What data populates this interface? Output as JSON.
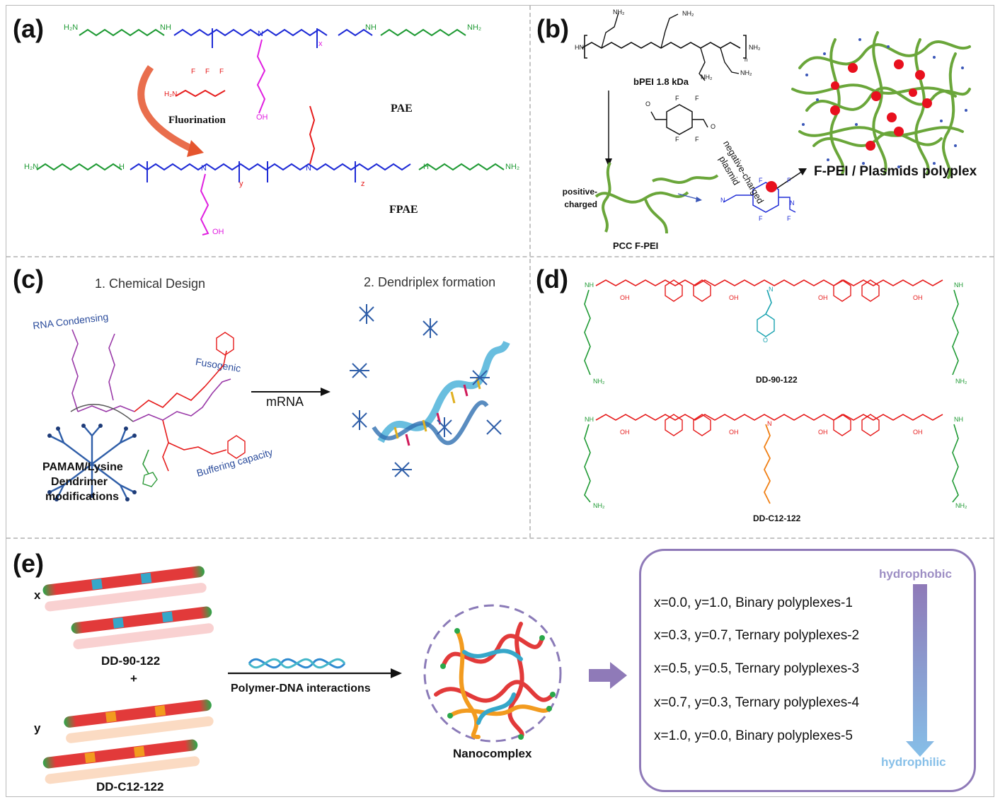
{
  "panels": {
    "a": {
      "label": "(a)",
      "reagent_label": "Fluorination",
      "pae_label": "PAE",
      "fpae_label": "FPAE",
      "atoms": {
        "h2n": "H₂N",
        "nh": "NH",
        "nh2": "NH₂",
        "n": "N",
        "oh": "OH",
        "o": "O",
        "f": "F",
        "x": "x",
        "y": "y",
        "z": "z",
        "h": "H"
      }
    },
    "b": {
      "label": "(b)",
      "bpei_label": "bPEI 1.8 kDa",
      "positive_label_1": "positive-",
      "positive_label_2": "charged",
      "pcc_label": "PCC F-PEI",
      "arrow_label_1": "negative-charged",
      "arrow_label_2": "plasmid",
      "polyplex_label": "F-PEI / Plasmids polyplex",
      "atoms": {
        "hn": "HN",
        "nh2": "NH₂",
        "n": "N",
        "h": "H",
        "n_sub": "n",
        "f": "F",
        "o": "O"
      }
    },
    "c": {
      "label": "(c)",
      "step1": "1. Chemical Design",
      "step2": "2. Dendriplex formation",
      "rna_condensing": "RNA Condensing",
      "fusogenic": "Fusogenic",
      "buffering": "Buffering capacity",
      "dendrimer_1": "PAMAM/Lysine",
      "dendrimer_2": "Dendrimer",
      "dendrimer_3": "modifications",
      "arrow_label": "mRNA"
    },
    "d": {
      "label": "(d)",
      "compound_1": "DD-90-122",
      "compound_2": "DD-C12-122",
      "atoms": {
        "nh": "NH",
        "nh2": "NH₂",
        "n": "N",
        "o": "O",
        "oh": "OH"
      }
    },
    "e": {
      "label": "(e)",
      "x": "x",
      "y": "y",
      "plus": "+",
      "polymer_1": "DD-90-122",
      "polymer_2": "DD-C12-122",
      "interaction_label": "Polymer-DNA interactions",
      "nanocomplex_label": "Nanocomplex",
      "hydrophobic": "hydrophobic",
      "hydrophilic": "hydrophilic",
      "rows": [
        "x=0.0, y=1.0, Binary polyplexes-1",
        "x=0.3, y=0.7,  Ternary polyplexes-2",
        "x=0.5, y=0.5,  Ternary polyplexes-3",
        "x=0.7, y=0.3,  Ternary polyplexes-4",
        "x=1.0, y=0.0,  Binary polyplexes-5"
      ]
    }
  },
  "colors": {
    "green": "#1f9a34",
    "blue": "#1e2bd6",
    "magenta": "#e020e0",
    "red": "#e61c1c",
    "teal": "#1aa3b0",
    "orange": "#f07f14",
    "purple_text": "#8b4aa8",
    "navy_text": "#2b4c9c",
    "polymer_green": "#6aa63a",
    "box_purple": "#8f7ab8"
  }
}
